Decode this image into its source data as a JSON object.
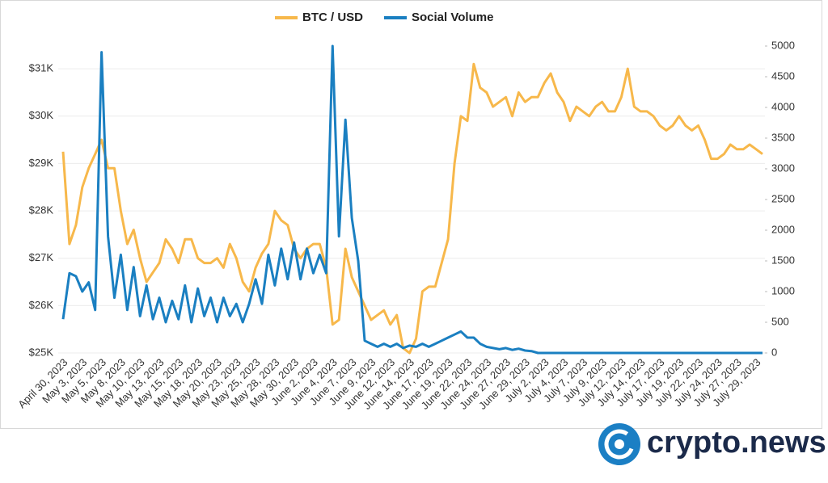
{
  "chart_data": {
    "type": "line",
    "watermark": "crypto.news",
    "categories": [
      "April 30, 2023",
      null,
      null,
      "May 3, 2023",
      null,
      null,
      "May 5, 2023",
      null,
      null,
      "May 8, 2023",
      null,
      null,
      "May 10, 2023",
      null,
      null,
      "May 13, 2023",
      null,
      null,
      "May 15, 2023",
      null,
      null,
      "May 18, 2023",
      null,
      null,
      "May 20, 2023",
      null,
      null,
      "May 23, 2023",
      null,
      null,
      "May 25, 2023",
      null,
      null,
      "May 28, 2023",
      null,
      null,
      "May 30, 2023",
      null,
      null,
      "June 2, 2023",
      null,
      null,
      "June 4, 2023",
      null,
      null,
      "June 7, 2023",
      null,
      null,
      "June 9, 2023",
      null,
      null,
      "June 12, 2023",
      null,
      null,
      "June 14, 2023",
      null,
      null,
      "June 17, 2023",
      null,
      null,
      "June 19, 2023",
      null,
      null,
      "June 22, 2023",
      null,
      null,
      "June 24, 2023",
      null,
      null,
      "June 27, 2023",
      null,
      null,
      "June 29, 2023",
      null,
      null,
      "July 2, 2023",
      null,
      null,
      "July 4, 2023",
      null,
      null,
      "July 7, 2023",
      null,
      null,
      "July 9, 2023",
      null,
      null,
      "July 12, 2023",
      null,
      null,
      "July 14, 2023",
      null,
      null,
      "July 17, 2023",
      null,
      null,
      "July 19, 2023",
      null,
      null,
      "July 22, 2023",
      null,
      null,
      "July 24, 2023",
      null,
      null,
      "July 27, 2023",
      null,
      null,
      "July 29, 2023",
      null
    ],
    "series": [
      {
        "name": "BTC / USD",
        "color": "#f7b84b",
        "axis": "y",
        "values": [
          29250,
          27300,
          27700,
          28500,
          28900,
          29200,
          29500,
          28900,
          28900,
          28000,
          27300,
          27600,
          27000,
          26500,
          26700,
          26900,
          27400,
          27200,
          26900,
          27400,
          27400,
          27000,
          26900,
          26900,
          27000,
          26800,
          27300,
          27000,
          26500,
          26300,
          26800,
          27100,
          27300,
          28000,
          27800,
          27700,
          27200,
          27000,
          27200,
          27300,
          27300,
          26800,
          25600,
          25700,
          27200,
          26600,
          26300,
          26000,
          25700,
          25800,
          25900,
          25600,
          25800,
          25100,
          25000,
          25300,
          26300,
          26400,
          26400,
          26900,
          27400,
          29000,
          30000,
          29900,
          31100,
          30600,
          30500,
          30200,
          30300,
          30400,
          30000,
          30500,
          30300,
          30400,
          30400,
          30700,
          30900,
          30500,
          30300,
          29900,
          30200,
          30100,
          30000,
          30200,
          30300,
          30100,
          30100,
          30400,
          31000,
          30200,
          30100,
          30100,
          30000,
          29800,
          29700,
          29800,
          30000,
          29800,
          29700,
          29800,
          29500,
          29100,
          29100,
          29200,
          29400,
          29300,
          29300,
          29400,
          29300,
          29200
        ]
      },
      {
        "name": "Social Volume",
        "color": "#1a7fc1",
        "axis": "y2",
        "values": [
          550,
          1300,
          1250,
          1000,
          1150,
          700,
          4900,
          1900,
          900,
          1600,
          700,
          1400,
          600,
          1100,
          550,
          900,
          500,
          850,
          550,
          1100,
          500,
          1050,
          600,
          900,
          500,
          900,
          600,
          800,
          500,
          800,
          1200,
          800,
          1600,
          1100,
          1700,
          1200,
          1800,
          1200,
          1700,
          1300,
          1600,
          1300,
          5000,
          1900,
          3800,
          2200,
          1500,
          200,
          150,
          100,
          150,
          100,
          150,
          80,
          120,
          100,
          150,
          100,
          150,
          200,
          250,
          300,
          350,
          250,
          250,
          150,
          100,
          80,
          60,
          80,
          50,
          70,
          40,
          30,
          0,
          0,
          0,
          0,
          0,
          0,
          0,
          0,
          0,
          0,
          0,
          0,
          0,
          0,
          0,
          0,
          0,
          0,
          0,
          0,
          0,
          0,
          0,
          0,
          0,
          0,
          0,
          0,
          0,
          0,
          0,
          0,
          0,
          0,
          0,
          0
        ]
      }
    ],
    "ylim": [
      25000,
      31480
    ],
    "yticks": [
      {
        "value": 25000,
        "label": "$25K"
      },
      {
        "value": 26000,
        "label": "$26K"
      },
      {
        "value": 27000,
        "label": "$27K"
      },
      {
        "value": 28000,
        "label": "$28K"
      },
      {
        "value": 29000,
        "label": "$29K"
      },
      {
        "value": 30000,
        "label": "$30K"
      },
      {
        "value": 31000,
        "label": "$31K"
      }
    ],
    "y2lim": [
      0,
      5000
    ],
    "y2ticks": [
      0,
      500,
      1000,
      1500,
      2000,
      2500,
      3000,
      3500,
      4000,
      4500,
      5000
    ],
    "grid": true
  }
}
